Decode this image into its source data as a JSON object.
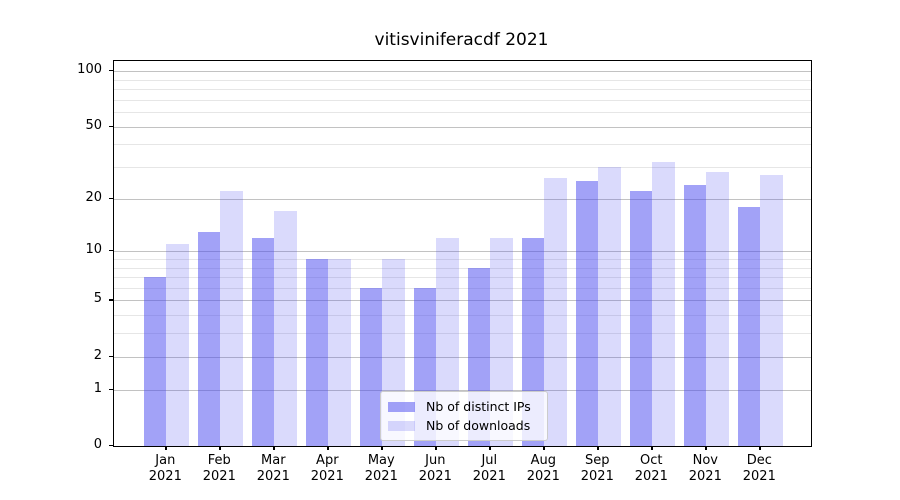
{
  "title": "vitisviniferacdf 2021",
  "chart_data": {
    "type": "bar",
    "title": "vitisviniferacdf 2021",
    "categories": [
      "Jan 2021",
      "Feb 2021",
      "Mar 2021",
      "Apr 2021",
      "May 2021",
      "Jun 2021",
      "Jul 2021",
      "Aug 2021",
      "Sep 2021",
      "Oct 2021",
      "Nov 2021",
      "Dec 2021"
    ],
    "category_line1": [
      "Jan",
      "Feb",
      "Mar",
      "Apr",
      "May",
      "Jun",
      "Jul",
      "Aug",
      "Sep",
      "Oct",
      "Nov",
      "Dec"
    ],
    "category_line2": [
      "2021",
      "2021",
      "2021",
      "2021",
      "2021",
      "2021",
      "2021",
      "2021",
      "2021",
      "2021",
      "2021",
      "2021"
    ],
    "series": [
      {
        "name": "Nb of distinct IPs",
        "color": "rgba(70,70,240,0.5)",
        "values": [
          7,
          13,
          12,
          9,
          6,
          6,
          8,
          12,
          25,
          22,
          24,
          18
        ]
      },
      {
        "name": "Nb of downloads",
        "color": "rgba(70,70,240,0.2)",
        "values": [
          11,
          22,
          17,
          9,
          9,
          12,
          12,
          26,
          30,
          32,
          28,
          27
        ]
      }
    ],
    "xlabel": "",
    "ylabel": "",
    "y_axis": {
      "scale": "log1p",
      "major_ticks": [
        0,
        1,
        2,
        5,
        10,
        20,
        50,
        100
      ],
      "minor_gridline_values": [
        3,
        4,
        6,
        7,
        8,
        9,
        30,
        40,
        60,
        70,
        80,
        90
      ],
      "range": [
        0,
        113
      ]
    },
    "grid": true,
    "legend_position": "lower-center"
  },
  "colors": {
    "bar_distinct_ips": "rgba(70,70,240,0.5)",
    "bar_downloads": "rgba(70,70,240,0.2)",
    "grid_major": "#c2c2c2",
    "grid_minor": "#e6e6e6",
    "spine": "#000000",
    "background": "#ffffff"
  }
}
